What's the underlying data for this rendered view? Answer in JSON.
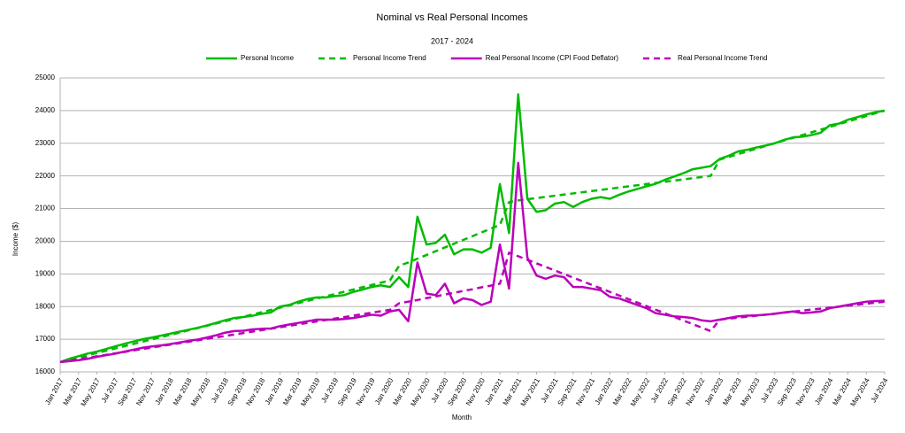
{
  "chart_data": {
    "type": "line",
    "title": "Nominal vs Real Personal Incomes",
    "subtitle": "2017 - 2024",
    "x_label": "Month",
    "y_label": "Income ($)",
    "categories": [
      "Jan 2017",
      null,
      "Mar 2017",
      null,
      "May 2017",
      null,
      "Jul 2017",
      null,
      "Sep 2017",
      null,
      "Nov 2017",
      null,
      "Jan 2018",
      null,
      "Mar 2018",
      null,
      "May 2018",
      null,
      "Jul 2018",
      null,
      "Sep 2018",
      null,
      "Nov 2018",
      null,
      "Jan 2019",
      null,
      "Mar 2019",
      null,
      "May 2019",
      null,
      "Jul 2019",
      null,
      "Sep 2019",
      null,
      "Nov 2019",
      null,
      "Jan 2020",
      null,
      "Mar 2020",
      null,
      "May 2020",
      null,
      "Jul 2020",
      null,
      "Sep 2020",
      null,
      "Nov 2020",
      null,
      "Jan 2021",
      null,
      "Mar 2021",
      null,
      "May 2021",
      null,
      "Jul 2021",
      null,
      "Sep 2021",
      null,
      "Nov 2021",
      null,
      "Jan 2022",
      null,
      "Mar 2022",
      null,
      "May 2022",
      null,
      "Jul 2022",
      null,
      "Sep 2022",
      null,
      "Nov 2022",
      null,
      "Jan 2023",
      null,
      "Mar 2023",
      null,
      "May 2023",
      null,
      "Jul 2023",
      null,
      "Sep 2023",
      null,
      "Nov 2023",
      null,
      "Jan 2024",
      null,
      "Mar 2024",
      null,
      "May 2024",
      null,
      "Jul 2024"
    ],
    "series": [
      {
        "name": "Personal Income",
        "color": "#00bb00",
        "dashed": false,
        "values": [
          16300,
          16400,
          16480,
          16560,
          16620,
          16700,
          16780,
          16860,
          16930,
          17000,
          17050,
          17110,
          17170,
          17230,
          17290,
          17350,
          17420,
          17500,
          17580,
          17650,
          17680,
          17720,
          17780,
          17820,
          18000,
          18050,
          18150,
          18230,
          18280,
          18280,
          18320,
          18350,
          18450,
          18520,
          18600,
          18650,
          18600,
          18900,
          18600,
          20750,
          19900,
          19950,
          20200,
          19600,
          19750,
          19750,
          19650,
          19800,
          21750,
          20250,
          24500,
          21300,
          20900,
          20950,
          21150,
          21200,
          21050,
          21200,
          21300,
          21350,
          21300,
          21420,
          21520,
          21600,
          21680,
          21760,
          21880,
          21980,
          22080,
          22200,
          22250,
          22300,
          22520,
          22620,
          22750,
          22800,
          22870,
          22930,
          23000,
          23100,
          23180,
          23200,
          23250,
          23320,
          23550,
          23600,
          23720,
          23800,
          23880,
          23950,
          24000
        ]
      },
      {
        "name": "Personal Income Trend",
        "color": "#00bb00",
        "dashed": true,
        "values": [
          16300,
          16369,
          16439,
          16508,
          16578,
          16647,
          16717,
          16786,
          16856,
          16925,
          16994,
          17064,
          17133,
          17203,
          17272,
          17342,
          17411,
          17481,
          17550,
          17619,
          17689,
          17758,
          17828,
          17897,
          17967,
          18036,
          18106,
          18175,
          18244,
          18314,
          18383,
          18453,
          18522,
          18592,
          18661,
          18731,
          18800,
          19250,
          19350,
          19465,
          19580,
          19695,
          19810,
          19925,
          20040,
          20155,
          20270,
          20385,
          20500,
          21200,
          21250,
          21286,
          21321,
          21357,
          21393,
          21429,
          21464,
          21500,
          21536,
          21571,
          21607,
          21643,
          21679,
          21714,
          21750,
          21786,
          21821,
          21857,
          21893,
          21929,
          21964,
          22000,
          22500,
          22583,
          22667,
          22750,
          22833,
          22917,
          23000,
          23083,
          23167,
          23250,
          23333,
          23417,
          23500,
          23583,
          23667,
          23750,
          23833,
          23917,
          24000
        ]
      },
      {
        "name": "Real Personal Income (CPI Food Deflator)",
        "color": "#bb00bb",
        "dashed": false,
        "values": [
          16300,
          16330,
          16360,
          16400,
          16460,
          16510,
          16560,
          16620,
          16680,
          16740,
          16780,
          16810,
          16850,
          16900,
          16950,
          16990,
          17050,
          17120,
          17200,
          17250,
          17260,
          17300,
          17320,
          17330,
          17400,
          17450,
          17500,
          17550,
          17600,
          17600,
          17600,
          17620,
          17650,
          17700,
          17750,
          17720,
          17850,
          17900,
          17550,
          19350,
          18400,
          18350,
          18700,
          18100,
          18250,
          18200,
          18050,
          18150,
          19900,
          18550,
          22400,
          19500,
          18950,
          18850,
          18950,
          18900,
          18600,
          18600,
          18550,
          18500,
          18300,
          18250,
          18150,
          18050,
          17950,
          17800,
          17750,
          17700,
          17680,
          17650,
          17580,
          17550,
          17600,
          17650,
          17700,
          17720,
          17730,
          17750,
          17780,
          17820,
          17850,
          17800,
          17820,
          17850,
          17950,
          18000,
          18050,
          18100,
          18150,
          18170,
          18180
        ]
      },
      {
        "name": "Real Personal Income Trend",
        "color": "#bb00bb",
        "dashed": true,
        "values": [
          16300,
          16344,
          16389,
          16433,
          16478,
          16522,
          16567,
          16611,
          16656,
          16700,
          16744,
          16789,
          16833,
          16878,
          16922,
          16967,
          17011,
          17056,
          17100,
          17144,
          17189,
          17233,
          17278,
          17322,
          17367,
          17411,
          17456,
          17500,
          17544,
          17589,
          17633,
          17678,
          17722,
          17767,
          17811,
          17856,
          17900,
          18100,
          18150,
          18200,
          18260,
          18310,
          18370,
          18420,
          18480,
          18530,
          18590,
          18640,
          18700,
          19650,
          19541,
          19432,
          19323,
          19214,
          19105,
          18995,
          18886,
          18777,
          18668,
          18559,
          18450,
          18341,
          18232,
          18123,
          18014,
          17905,
          17795,
          17686,
          17577,
          17468,
          17359,
          17250,
          17600,
          17631,
          17661,
          17692,
          17722,
          17753,
          17783,
          17814,
          17844,
          17875,
          17906,
          17936,
          17967,
          17997,
          18028,
          18058,
          18089,
          18119,
          18150
        ]
      }
    ],
    "ylim": [
      16000,
      25000
    ],
    "yticks": [
      16000,
      17000,
      18000,
      19000,
      20000,
      21000,
      22000,
      23000,
      24000,
      25000
    ],
    "grid": true,
    "legend": "top"
  }
}
